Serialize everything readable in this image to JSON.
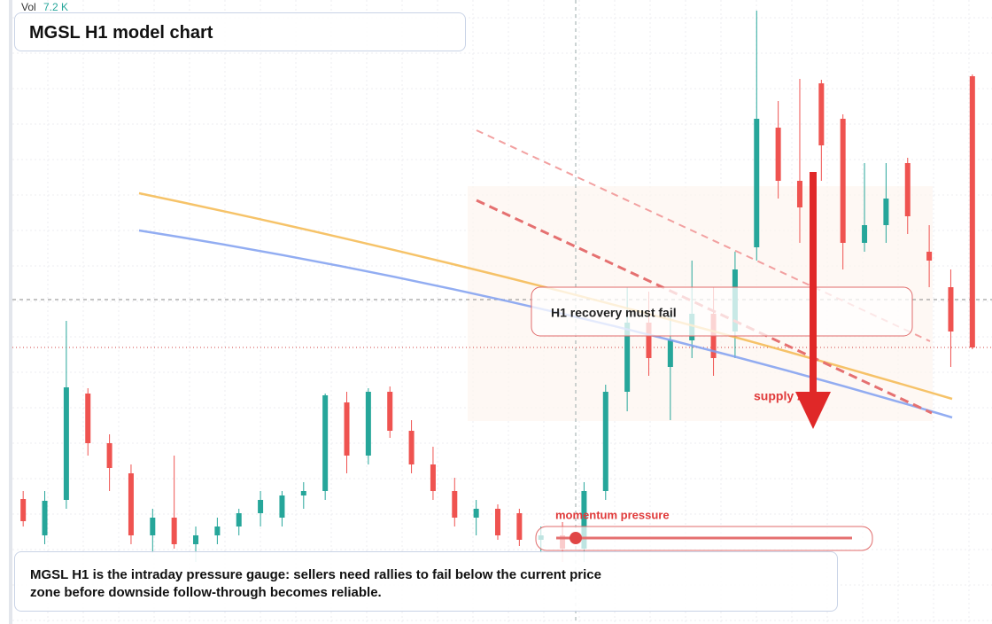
{
  "chart_data": {
    "type": "candlestick",
    "title": "MGSL H1 model chart",
    "volume_name": "Vol",
    "volume": {
      "value": 7200,
      "label": "7.2 K"
    },
    "up_color": "#26a69a",
    "down_color": "#ef5350",
    "ylim": [
      0,
      704
    ],
    "grid": true,
    "open": [
      141,
      100,
      140,
      260,
      204,
      170,
      100,
      120,
      90,
      100,
      110,
      125,
      120,
      145,
      150,
      250,
      190,
      262,
      218,
      180,
      150,
      120,
      130,
      125,
      95,
      100,
      85,
      150,
      262,
      340,
      290,
      320,
      350,
      330,
      425,
      560,
      500,
      610,
      570,
      430,
      450,
      520,
      420,
      380,
      618
    ],
    "high": [
      150,
      150,
      342,
      266,
      214,
      180,
      130,
      190,
      110,
      120,
      130,
      150,
      150,
      160,
      260,
      262,
      266,
      268,
      230,
      200,
      165,
      140,
      135,
      130,
      110,
      115,
      160,
      270,
      380,
      375,
      350,
      410,
      380,
      420,
      692,
      590,
      615,
      614,
      575,
      520,
      520,
      526,
      450,
      400,
      620
    ],
    "low": [
      110,
      90,
      130,
      190,
      150,
      90,
      80,
      85,
      70,
      90,
      100,
      110,
      110,
      130,
      140,
      170,
      180,
      210,
      170,
      140,
      110,
      100,
      95,
      88,
      80,
      70,
      70,
      140,
      240,
      280,
      230,
      300,
      280,
      300,
      410,
      480,
      430,
      500,
      400,
      420,
      430,
      440,
      380,
      290,
      310
    ],
    "close": [
      116,
      139,
      267,
      204,
      176,
      100,
      120,
      90,
      100,
      110,
      125,
      140,
      145,
      150,
      258,
      190,
      262,
      218,
      180,
      150,
      120,
      130,
      100,
      95,
      100,
      85,
      150,
      262,
      340,
      300,
      320,
      350,
      300,
      400,
      570,
      500,
      470,
      540,
      430,
      450,
      480,
      460,
      410,
      330,
      312
    ],
    "annotations": [
      "H1 recovery must fail",
      "supply zone",
      "momentum pressure"
    ],
    "note": "MGSL H1 is the intraday pressure gauge: sellers need rallies to fail below the current price zone before downside follow-through becomes reliable."
  }
}
